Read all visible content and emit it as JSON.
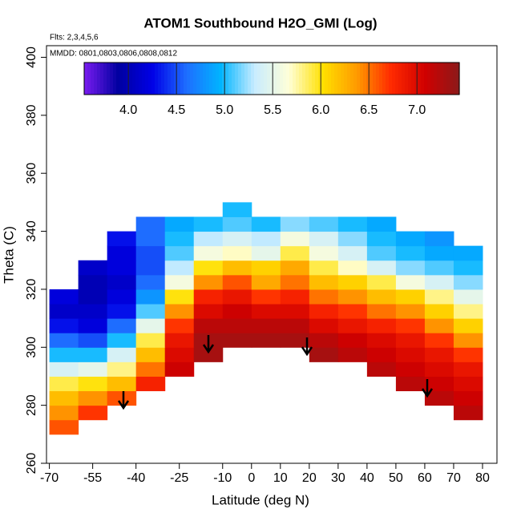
{
  "chart_data": {
    "type": "heatmap",
    "title": "ATOM1 Southbound H2O_GMI (Log)",
    "annotations": [
      "Flts: 2,3,4,5,6",
      "MMDD: 0801,0803,0806,0808,0812"
    ],
    "x_label": "Latitude (deg N)",
    "y_label": "Theta (C)",
    "xlim": [
      -71,
      85
    ],
    "ylim": [
      260,
      404
    ],
    "xticks": [
      -70,
      -55,
      -40,
      -25,
      -10,
      0,
      10,
      20,
      30,
      40,
      50,
      60,
      70,
      80
    ],
    "yticks": [
      260,
      280,
      300,
      320,
      340,
      360,
      380,
      400
    ],
    "x_bins": [
      -70,
      -60,
      -50,
      -40,
      -30,
      -20,
      -10,
      0,
      10,
      20,
      30,
      40,
      50,
      60,
      70,
      80
    ],
    "y_bins": [
      270,
      275,
      280,
      285,
      290,
      295,
      300,
      305,
      310,
      315,
      320,
      325,
      330,
      335,
      340,
      345,
      350
    ],
    "values": [
      [
        6.6,
        null,
        null,
        null,
        null,
        null,
        null,
        null,
        null,
        null,
        null,
        null,
        null,
        null,
        null
      ],
      [
        6.4,
        6.7,
        null,
        null,
        null,
        null,
        null,
        null,
        null,
        null,
        null,
        null,
        null,
        null,
        7.2
      ],
      [
        6.2,
        6.4,
        6.6,
        null,
        null,
        null,
        null,
        null,
        null,
        null,
        null,
        null,
        null,
        7.2,
        7.1
      ],
      [
        5.9,
        6.0,
        6.2,
        6.8,
        null,
        null,
        null,
        null,
        null,
        null,
        null,
        null,
        7.2,
        7.1,
        7.0
      ],
      [
        5.4,
        5.5,
        5.8,
        6.5,
        7.1,
        null,
        null,
        null,
        null,
        null,
        null,
        7.2,
        7.1,
        7.0,
        6.9
      ],
      [
        5.0,
        5.0,
        5.4,
        6.2,
        7.0,
        7.3,
        null,
        null,
        null,
        7.3,
        7.2,
        7.1,
        7.0,
        6.9,
        6.7
      ],
      [
        4.6,
        4.5,
        5.0,
        5.9,
        6.9,
        7.3,
        7.3,
        7.3,
        7.3,
        7.2,
        7.1,
        7.0,
        6.9,
        6.7,
        6.4
      ],
      [
        4.3,
        4.2,
        4.6,
        5.5,
        6.7,
        7.2,
        7.2,
        7.2,
        7.2,
        7.0,
        6.9,
        6.8,
        6.7,
        6.4,
        6.1
      ],
      [
        4.1,
        4.1,
        4.3,
        5.1,
        6.4,
        7.0,
        7.1,
        7.0,
        7.0,
        6.8,
        6.7,
        6.5,
        6.4,
        6.1,
        5.8
      ],
      [
        4.2,
        4.0,
        4.2,
        4.8,
        6.0,
        6.8,
        6.9,
        6.7,
        6.8,
        6.5,
        6.4,
        6.2,
        6.1,
        5.8,
        5.5
      ],
      [
        null,
        4.0,
        4.1,
        4.6,
        5.6,
        6.4,
        6.6,
        6.3,
        6.5,
        6.2,
        6.1,
        5.9,
        5.6,
        5.4,
        5.2
      ],
      [
        null,
        4.1,
        4.2,
        4.5,
        5.3,
        6.0,
        6.2,
        6.1,
        6.3,
        5.9,
        5.7,
        5.4,
        5.2,
        5.1,
        5.0
      ],
      [
        null,
        null,
        4.2,
        4.5,
        5.1,
        5.6,
        5.7,
        5.5,
        5.9,
        5.6,
        5.4,
        5.1,
        5.0,
        4.9,
        4.9
      ],
      [
        null,
        null,
        4.3,
        4.6,
        5.0,
        5.3,
        5.4,
        5.3,
        5.6,
        5.4,
        5.2,
        5.0,
        4.9,
        4.8,
        null
      ],
      [
        null,
        null,
        null,
        4.6,
        4.9,
        5.0,
        5.1,
        5.0,
        5.2,
        5.1,
        5.0,
        4.9,
        null,
        null,
        null
      ],
      [
        null,
        null,
        null,
        null,
        null,
        null,
        5.0,
        null,
        null,
        null,
        null,
        null,
        null,
        null,
        null
      ]
    ],
    "clim": [
      3.54,
      7.44
    ],
    "colorbar_ticks": [
      {
        "value": 4.0,
        "label": "4.0"
      },
      {
        "value": 4.5,
        "label": "4.5"
      },
      {
        "value": 5.0,
        "label": "5.0"
      },
      {
        "value": 5.5,
        "label": "5.5"
      },
      {
        "value": 6.0,
        "label": "6.0"
      },
      {
        "value": 6.5,
        "label": "6.5"
      },
      {
        "value": 7.0,
        "label": "7.0"
      }
    ],
    "colormap": [
      "#7a1cf0",
      "#0000a0",
      "#0000e6",
      "#1e6eff",
      "#00b4ff",
      "#c8ecff",
      "#ffffd8",
      "#ffe000",
      "#ff9a00",
      "#ff2a00",
      "#d00000",
      "#8b1a1a"
    ]
  }
}
